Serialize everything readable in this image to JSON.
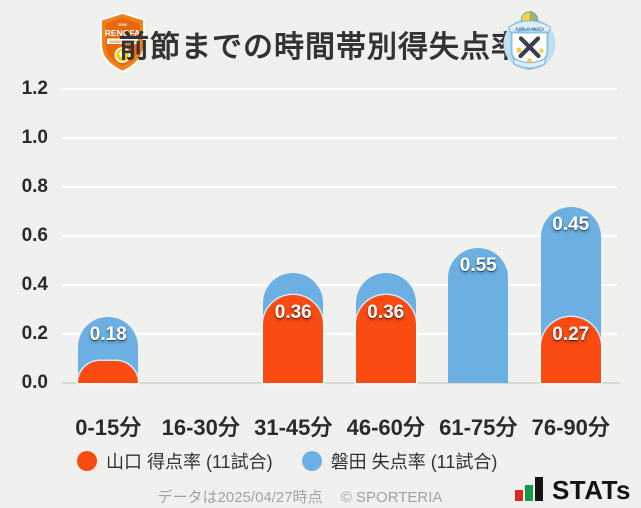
{
  "header": {
    "left_team": "RENOFA YAMAGUCHI FC",
    "right_team": "JUBILO IWATA"
  },
  "chart_data": {
    "type": "bar",
    "stacked": true,
    "title": "前節までの時間帯別得失点率",
    "categories": [
      "0-15分",
      "16-30分",
      "31-45分",
      "46-60分",
      "61-75分",
      "76-90分"
    ],
    "series": [
      {
        "name": "山口 得点率 (11試合)",
        "color": "#fa4b13",
        "values": [
          0.09,
          0,
          0.36,
          0.36,
          0,
          0.27
        ],
        "data_labels": [
          "",
          "",
          "0.36",
          "0.36",
          "",
          "0.27"
        ]
      },
      {
        "name": "磐田 失点率 (11試合)",
        "color": "#6cb0e3",
        "values": [
          0.18,
          0,
          0.09,
          0.09,
          0.55,
          0.45
        ],
        "data_labels": [
          "0.18",
          "",
          "",
          "",
          "0.55",
          "0.45"
        ]
      }
    ],
    "ylim": [
      0,
      1.2
    ],
    "ytick_labels": [
      "0.0",
      "0.2",
      "0.4",
      "0.6",
      "0.8",
      "1.0",
      "1.2"
    ],
    "grid": true,
    "legend_position": "bottom"
  },
  "footer": {
    "note": "データは2025/04/27時点",
    "copyright": "© SPORTERIA",
    "brand": "STATs"
  },
  "colors": {
    "background": "#f0f0ee",
    "gridline": "#ffffff",
    "baseline": "#d8d8d5",
    "axis_text": "#2b2b2b",
    "yamaguchi_orange": "#fa4b13",
    "iwata_blue": "#6cb0e3"
  }
}
